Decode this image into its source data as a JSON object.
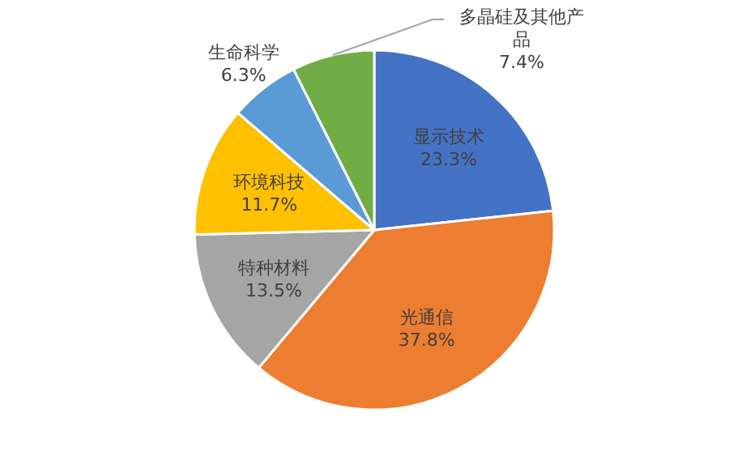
{
  "chart_data": {
    "type": "pie",
    "categories": [
      "显示技术",
      "光通信",
      "特种材料",
      "环境科技",
      "生命科学",
      "多晶硅及其他产品"
    ],
    "values": [
      23.3,
      37.8,
      13.5,
      11.7,
      6.3,
      7.4
    ],
    "value_labels": [
      "23.3%",
      "37.8%",
      "13.5%",
      "11.7%",
      "6.3%",
      "7.4%"
    ],
    "colors": [
      "#4472c4",
      "#ed7d31",
      "#a5a5a5",
      "#ffc000",
      "#5b9bd5",
      "#70ad47"
    ]
  }
}
